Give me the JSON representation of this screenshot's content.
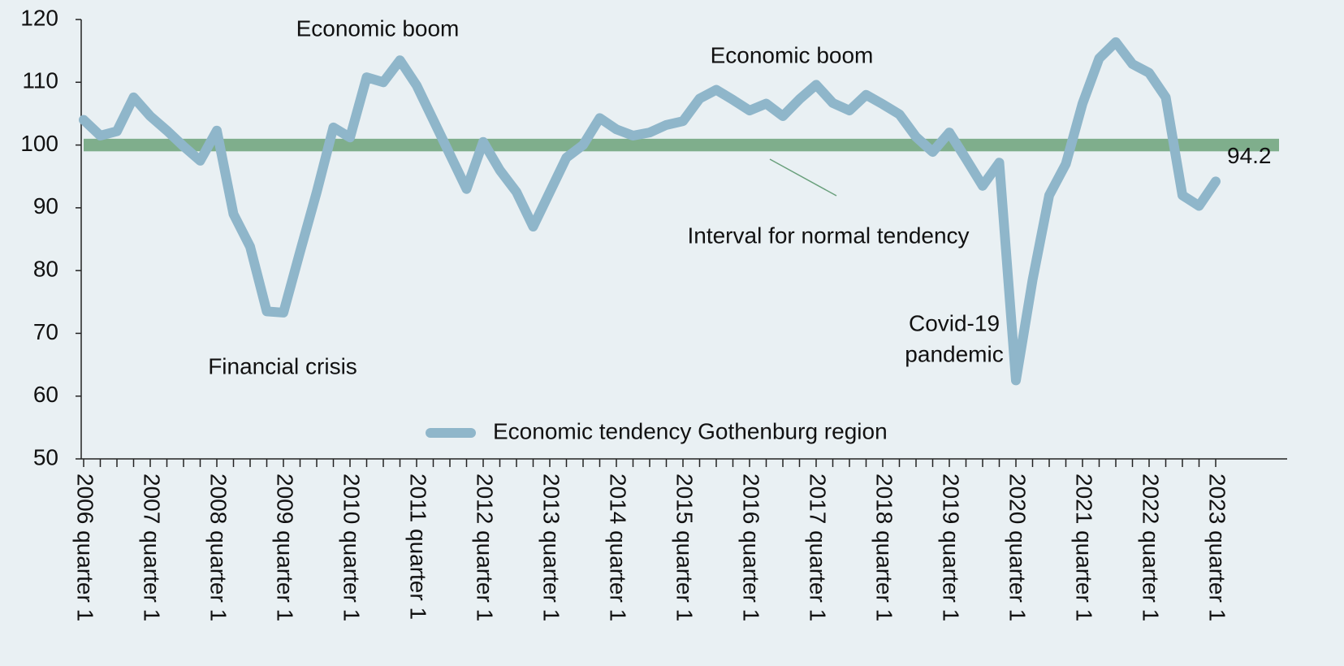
{
  "chart_data": {
    "type": "line",
    "categories": [
      "2006 quarter 1",
      null,
      null,
      null,
      "2007 quarter 1",
      null,
      null,
      null,
      "2008 quarter 1",
      null,
      null,
      null,
      "2009 quarter 1",
      null,
      null,
      null,
      "2010 quarter 1",
      null,
      null,
      null,
      "2011 quarter 1",
      null,
      null,
      null,
      "2012 quarter 1",
      null,
      null,
      null,
      "2013 quarter 1",
      null,
      null,
      null,
      "2014 quarter 1",
      null,
      null,
      null,
      "2015 quarter 1",
      null,
      null,
      null,
      "2016 quarter 1",
      null,
      null,
      null,
      "2017 quarter 1",
      null,
      null,
      null,
      "2018 quarter 1",
      null,
      null,
      null,
      "2019 quarter 1",
      null,
      null,
      null,
      "2020 quarter 1",
      null,
      null,
      null,
      "2021 quarter 1",
      null,
      null,
      null,
      "2022 quarter 1",
      null,
      null,
      null,
      "2023 quarter 1"
    ],
    "series": [
      {
        "name": "Economic tendency Gothenburg region",
        "color": "#8fb6ca",
        "values": [
          104,
          101.5,
          102.2,
          107.6,
          104.6,
          102.3,
          99.8,
          97.5,
          102.3,
          89,
          83.8,
          73.5,
          73.3,
          83,
          92.5,
          102.8,
          101.2,
          110.8,
          110,
          113.5,
          109.5,
          104,
          98.5,
          93,
          100.5,
          96,
          92.5,
          87,
          92.5,
          98,
          100,
          104.3,
          102.5,
          101.5,
          102,
          103.2,
          103.8,
          107.4,
          108.8,
          107.2,
          105.5,
          106.6,
          104.6,
          107.3,
          109.6,
          106.7,
          105.5,
          108,
          106.5,
          104.9,
          101.3,
          98.9,
          102,
          97.8,
          93.5,
          97.2,
          62.5,
          78.5,
          92,
          97,
          106.6,
          113.8,
          116.4,
          112.9,
          111.5,
          107.6,
          92,
          90.3,
          94.2
        ]
      }
    ],
    "normal_range": [
      99,
      101
    ],
    "normal_color": "#7fae8c",
    "ylim": [
      50,
      120
    ],
    "yticks": [
      50,
      60,
      70,
      80,
      90,
      100,
      110,
      120
    ],
    "annotations": {
      "boom1": "Economic boom",
      "boom2": "Economic boom",
      "crisis": "Financial crisis",
      "interval": "Interval for normal tendency",
      "covid": [
        "Covid-19",
        "pandemic"
      ]
    }
  }
}
